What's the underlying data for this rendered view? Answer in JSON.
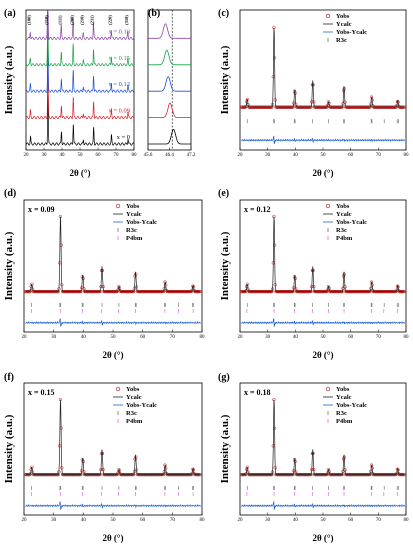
{
  "figure": {
    "panel_labels": [
      "(a)",
      "(b)",
      "(c)",
      "(d)",
      "(e)",
      "(f)",
      "(g)"
    ],
    "ylabel": "Intensity (a.u.)",
    "xlabel": "2θ (°)"
  },
  "chart_data": [
    {
      "id": "a",
      "type": "line",
      "title": "(a)",
      "xlabel": "2θ (°)",
      "ylabel": "Intensity (a.u.)",
      "xlim": [
        20,
        80
      ],
      "xticks": [
        "20",
        "30",
        "40",
        "50",
        "60",
        "70",
        "80"
      ],
      "peaks": [
        {
          "label": "(100)",
          "x": 22.5,
          "h": 0.12
        },
        {
          "label": "(110)",
          "x": 32.2,
          "h": 1.0
        },
        {
          "label": "(111)",
          "x": 39.7,
          "h": 0.22
        },
        {
          "label": "(200)",
          "x": 46.3,
          "h": 0.35
        },
        {
          "label": "(210)",
          "x": 51.9,
          "h": 0.08
        },
        {
          "label": "(211)",
          "x": 57.6,
          "h": 0.28
        },
        {
          "label": "(220)",
          "x": 67.5,
          "h": 0.15
        },
        {
          "label": "(310)",
          "x": 76.7,
          "h": 0.1
        }
      ],
      "series": [
        {
          "name": "x = 0",
          "color": "#000000"
        },
        {
          "name": "x = 0.09",
          "color": "#d9232d"
        },
        {
          "name": "x = 0.12",
          "color": "#1f4fd8"
        },
        {
          "name": "x = 0.15",
          "color": "#16a34a"
        },
        {
          "name": "x = 0.18",
          "color": "#8e44ad"
        }
      ]
    },
    {
      "id": "b",
      "type": "line",
      "title": "(b)",
      "xlim": [
        45.6,
        47.2
      ],
      "xticks": [
        "45.6",
        "46.4",
        "47.2"
      ],
      "reference_line_x": 46.5,
      "series": [
        {
          "name": "x = 0",
          "color": "#000000",
          "peak": 46.55
        },
        {
          "name": "x = 0.09",
          "color": "#d9232d",
          "peak": 46.42
        },
        {
          "name": "x = 0.12",
          "color": "#1f4fd8",
          "peak": 46.35
        },
        {
          "name": "x = 0.15",
          "color": "#16a34a",
          "peak": 46.3
        },
        {
          "name": "x = 0.18",
          "color": "#8e44ad",
          "peak": 46.25
        }
      ]
    },
    {
      "id": "c",
      "type": "scatter",
      "title": "(c)",
      "sample_label": "",
      "xlabel": "2θ (°)",
      "ylabel": "Intensity (a.u.)",
      "xlim": [
        20,
        80
      ],
      "xticks": [
        "20",
        "30",
        "40",
        "50",
        "60",
        "70",
        "80"
      ],
      "legend": [
        "Yobs",
        "Ycalc",
        "Yobs-Ycalc",
        "R3c"
      ],
      "phases": [
        "R3c"
      ]
    },
    {
      "id": "d",
      "type": "scatter",
      "title": "(d)",
      "sample_label": "x = 0.09",
      "xlabel": "2θ (°)",
      "ylabel": "Intensity (a.u.)",
      "xlim": [
        20,
        80
      ],
      "xticks": [
        "20",
        "30",
        "40",
        "50",
        "60",
        "70",
        "80"
      ],
      "legend": [
        "Yobs",
        "Ycalc",
        "Yobs-Ycalc",
        "R3c",
        "P4bm"
      ],
      "phases": [
        "R3c",
        "P4bm"
      ]
    },
    {
      "id": "e",
      "type": "scatter",
      "title": "(e)",
      "sample_label": "x = 0.12",
      "xlabel": "2θ (°)",
      "ylabel": "Intensity (a.u.)",
      "xlim": [
        20,
        80
      ],
      "xticks": [
        "20",
        "30",
        "40",
        "50",
        "60",
        "70",
        "80"
      ],
      "legend": [
        "Yobs",
        "Ycalc",
        "Yobs-Ycalc",
        "R3c",
        "P4bm"
      ],
      "phases": [
        "R3c",
        "P4bm"
      ]
    },
    {
      "id": "f",
      "type": "scatter",
      "title": "(f)",
      "sample_label": "x = 0.15",
      "xlabel": "2θ (°)",
      "ylabel": "Intensity (a.u.)",
      "xlim": [
        20,
        80
      ],
      "xticks": [
        "20",
        "30",
        "40",
        "50",
        "60",
        "70",
        "80"
      ],
      "legend": [
        "Yobs",
        "Ycalc",
        "Yobs-Ycalc",
        "R3c",
        "P4bm"
      ],
      "phases": [
        "R3c",
        "P4bm"
      ]
    },
    {
      "id": "g",
      "type": "scatter",
      "title": "(g)",
      "sample_label": "x = 0.18",
      "xlabel": "2θ (°)",
      "ylabel": "Intensity (a.u.)",
      "xlim": [
        20,
        80
      ],
      "xticks": [
        "20",
        "30",
        "40",
        "50",
        "60",
        "70",
        "80"
      ],
      "legend": [
        "Yobs",
        "Ycalc",
        "Yobs-Ycalc",
        "R3c",
        "P4bm"
      ],
      "phases": [
        "R3c",
        "P4bm"
      ]
    }
  ],
  "colors": {
    "obs": "#b22222",
    "calc": "#222222",
    "diff": "#1f5fd1",
    "r3c_tick": "#444444",
    "p4bm_tick": "#cc33cc"
  }
}
